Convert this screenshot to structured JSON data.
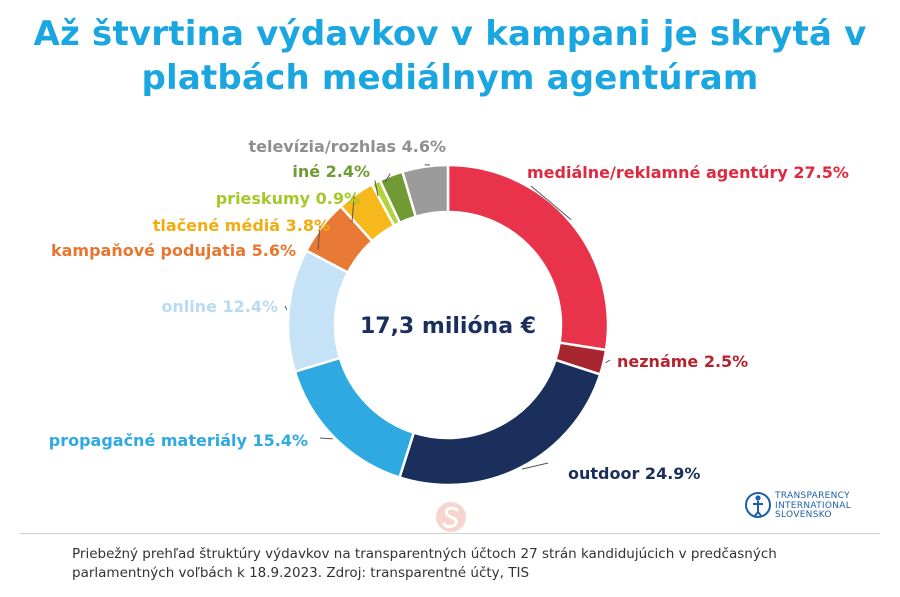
{
  "title": "Až štvrtina výdavkov v kampani je skrytá v platbách mediálnym agentúram",
  "center_label": "17,3 milióna €",
  "footer": "Priebežný prehľad štruktúry výdavkov na transparentných účtoch 27 strán kandidujúcich v predčasných parlamentných voľbách k 18.9.2023. Zdroj: transparentné účty, TIS",
  "logo_text": [
    "TRANSPARENCY",
    "INTERNATIONAL",
    "SLOVENSKO"
  ],
  "chart_data": {
    "type": "pie",
    "title": "Až štvrtina výdavkov v kampani je skrytá v platbách mediálnym agentúram",
    "donut": true,
    "series": [
      {
        "label": "mediálne/reklamné agentúry",
        "value": 27.5,
        "display": "mediálne/reklamné agentúry 27.5%",
        "color": "#e8334a",
        "text_color": "#e0283f"
      },
      {
        "label": "neznáme",
        "value": 2.5,
        "display": "neznáme 2.5%",
        "color": "#a8262f",
        "text_color": "#b5242e"
      },
      {
        "label": "outdoor",
        "value": 24.9,
        "display": "outdoor 24.9%",
        "color": "#1b2f5c",
        "text_color": "#1b2f5c"
      },
      {
        "label": "propagačné materiály",
        "value": 15.4,
        "display": "propagačné materiály 15.4%",
        "color": "#2fa9e1",
        "text_color": "#2fa9e1"
      },
      {
        "label": "online",
        "value": 12.4,
        "display": "online 12.4%",
        "color": "#c5e2f6",
        "text_color": "#b9daf2"
      },
      {
        "label": "kampaňové podujatia",
        "value": 5.6,
        "display": "kampaňové podujatia 5.6%",
        "color": "#e87a35",
        "text_color": "#e8762e"
      },
      {
        "label": "tlačené médiá",
        "value": 3.8,
        "display": "tlačené médiá 3.8%",
        "color": "#f7b81c",
        "text_color": "#f2ac10"
      },
      {
        "label": "prieskumy",
        "value": 0.9,
        "display": "prieskumy 0.9%",
        "color": "#b4d33a",
        "text_color": "#a5c92b"
      },
      {
        "label": "iné",
        "value": 2.4,
        "display": "iné 2.4%",
        "color": "#6f9a34",
        "text_color": "#6f9a34"
      },
      {
        "label": "televízia/rozhlas",
        "value": 4.6,
        "display": "televízia/rozhlas 4.6%",
        "color": "#9b9b9b",
        "text_color": "#8f8f8f"
      }
    ]
  }
}
